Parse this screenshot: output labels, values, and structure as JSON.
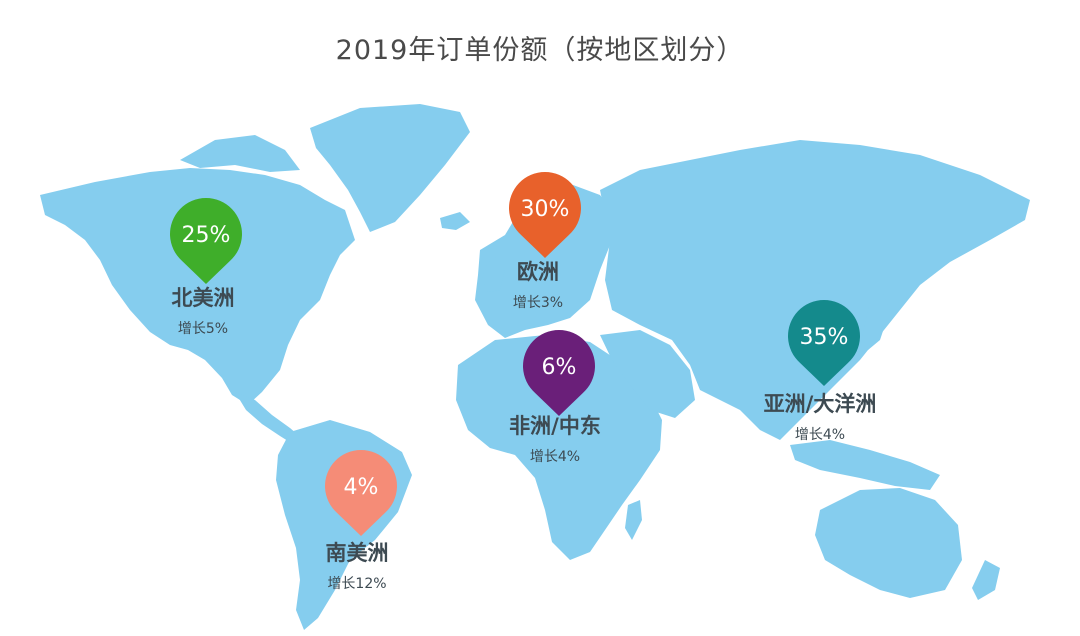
{
  "title": "2019年订单份额（按地区划分）",
  "colors": {
    "land": "#85cdee",
    "north_america": "#3fae2a",
    "europe": "#e8612b",
    "middle_east_africa": "#6a1f79",
    "asia_oceania": "#148a8c",
    "south_america": "#f58c77"
  },
  "regions": {
    "north_america": {
      "share": "25%",
      "name": "北美洲",
      "growth": "增长5%"
    },
    "europe": {
      "share": "30%",
      "name": "欧洲",
      "growth": "增长3%"
    },
    "middle_east_africa": {
      "share": "6%",
      "name": "非洲/中东",
      "growth": "增长4%"
    },
    "asia_oceania": {
      "share": "35%",
      "name": "亚洲/大洋洲",
      "growth": "增长4%"
    },
    "south_america": {
      "share": "4%",
      "name": "南美洲",
      "growth": "增长12%"
    }
  }
}
